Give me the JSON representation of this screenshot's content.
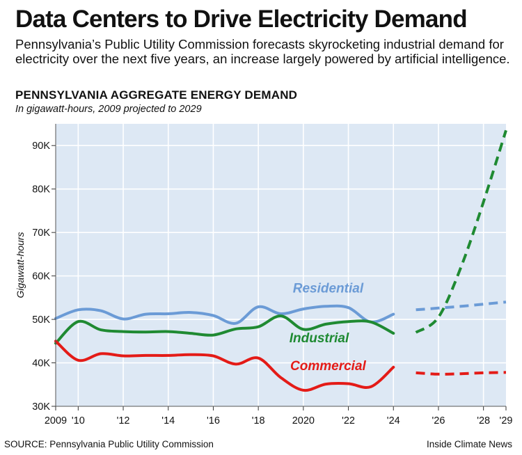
{
  "header": {
    "title": "Data Centers to Drive Electricity Demand",
    "subtitle": "Pennsylvania’s Public Utility Commission forecasts skyrocketing industrial demand for electricity over the next five years, an increase largely powered by artificial intelligence."
  },
  "footer": {
    "source": "SOURCE: Pennsylvania Public Utility Commission",
    "credit": "Inside Climate News"
  },
  "colors": {
    "residential": "#6b9bd6",
    "industrial": "#1f8a32",
    "commercial": "#e41b17",
    "background": "#dde8f4",
    "grid": "#ffffff"
  },
  "chart_data": {
    "type": "line",
    "title": "PENNSYLVANIA AGGREGATE ENERGY DEMAND",
    "subtitle": "In gigawatt-hours, 2009 projected to 2029",
    "ylabel": "Gigawatt-hours",
    "xlabel": "",
    "xlim": [
      2009,
      2029
    ],
    "ylim": [
      30000,
      95000
    ],
    "y_ticks": [
      {
        "value": 30000,
        "label": "30K"
      },
      {
        "value": 40000,
        "label": "40K"
      },
      {
        "value": 50000,
        "label": "50K"
      },
      {
        "value": 60000,
        "label": "60K"
      },
      {
        "value": 70000,
        "label": "70K"
      },
      {
        "value": 80000,
        "label": "80K"
      },
      {
        "value": 90000,
        "label": "90K"
      }
    ],
    "x_ticks": [
      {
        "value": 2009,
        "label": "2009"
      },
      {
        "value": 2010,
        "label": "'10"
      },
      {
        "value": 2012,
        "label": "'12"
      },
      {
        "value": 2014,
        "label": "'14"
      },
      {
        "value": 2016,
        "label": "'16"
      },
      {
        "value": 2018,
        "label": "'18"
      },
      {
        "value": 2020,
        "label": "2020"
      },
      {
        "value": 2022,
        "label": "'22"
      },
      {
        "value": 2024,
        "label": "'24"
      },
      {
        "value": 2026,
        "label": "'26"
      },
      {
        "value": 2028,
        "label": "'28"
      },
      {
        "value": 2029,
        "label": "'29"
      }
    ],
    "series": [
      {
        "name": "Residential",
        "color": "#6b9bd6",
        "historical": {
          "x": [
            2009,
            2010,
            2011,
            2012,
            2013,
            2014,
            2015,
            2016,
            2017,
            2018,
            2019,
            2020,
            2021,
            2022,
            2023,
            2024
          ],
          "y": [
            50200,
            52200,
            52000,
            50100,
            51200,
            51300,
            51600,
            50900,
            49100,
            52900,
            51300,
            52400,
            53000,
            52700,
            49400,
            51200
          ]
        },
        "projected": {
          "x": [
            2025,
            2026,
            2027,
            2028,
            2029
          ],
          "y": [
            52200,
            52600,
            53000,
            53500,
            54000
          ]
        }
      },
      {
        "name": "Industrial",
        "color": "#1f8a32",
        "historical": {
          "x": [
            2009,
            2010,
            2011,
            2012,
            2013,
            2014,
            2015,
            2016,
            2017,
            2018,
            2019,
            2020,
            2021,
            2022,
            2023,
            2024
          ],
          "y": [
            44500,
            49500,
            47600,
            47200,
            47100,
            47200,
            46800,
            46400,
            47800,
            48300,
            50800,
            47700,
            48900,
            49500,
            49400,
            46800
          ]
        },
        "projected": {
          "x": [
            2025,
            2026,
            2027,
            2028,
            2029
          ],
          "y": [
            47000,
            50500,
            62000,
            77000,
            93500
          ]
        }
      },
      {
        "name": "Commercial",
        "color": "#e41b17",
        "historical": {
          "x": [
            2009,
            2010,
            2011,
            2012,
            2013,
            2014,
            2015,
            2016,
            2017,
            2018,
            2019,
            2020,
            2021,
            2022,
            2023,
            2024
          ],
          "y": [
            45000,
            40600,
            42100,
            41600,
            41700,
            41700,
            41900,
            41600,
            39700,
            41100,
            36600,
            33700,
            35100,
            35200,
            34500,
            39000
          ]
        },
        "projected": {
          "x": [
            2025,
            2026,
            2027,
            2028,
            2029
          ],
          "y": [
            37700,
            37400,
            37500,
            37700,
            37800
          ]
        }
      }
    ],
    "annotations": [
      {
        "text": "Residential",
        "series": "Residential",
        "x": 2021.1,
        "y": 56200
      },
      {
        "text": "Industrial",
        "series": "Industrial",
        "x": 2020.7,
        "y": 44700
      },
      {
        "text": "Commercial",
        "series": "Commercial",
        "x": 2021.1,
        "y": 38300
      }
    ]
  }
}
